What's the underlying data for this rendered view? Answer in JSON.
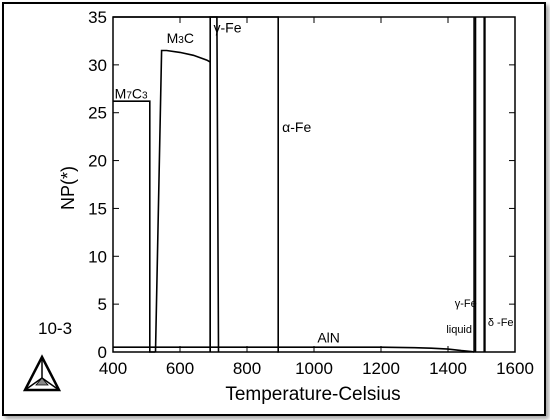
{
  "chart_data": {
    "type": "line",
    "title": "",
    "xlabel": "Temperature-Celsius",
    "ylabel": "NP(*)",
    "y_multiplier_label": "10-3",
    "xlim": [
      400,
      1600
    ],
    "ylim": [
      0,
      35
    ],
    "xticks": [
      400,
      600,
      800,
      1000,
      1200,
      1400,
      1600
    ],
    "yticks": [
      0,
      5,
      10,
      15,
      20,
      25,
      30,
      35
    ],
    "grid": false,
    "series": [
      {
        "name": "M7C3",
        "x": [
          400,
          510,
          510,
          518,
          526
        ],
        "y": [
          26.2,
          26.2,
          0,
          0,
          0
        ]
      },
      {
        "name": "M3C",
        "x": [
          527,
          545,
          560,
          600,
          640,
          680,
          690,
          690
        ],
        "y": [
          0,
          31.5,
          31.5,
          31.3,
          31,
          30.5,
          30.3,
          0
        ]
      },
      {
        "name": "γ-Fe",
        "x": [
          690,
          690,
          710,
          715
        ],
        "y": [
          0,
          35,
          35,
          0
        ]
      },
      {
        "name": "α-Fe",
        "x": [
          400,
          893,
          893,
          895
        ],
        "y": [
          35,
          35,
          0,
          0
        ]
      },
      {
        "name": "AlN",
        "x": [
          400,
          600,
          800,
          1000,
          1200,
          1300,
          1350,
          1400,
          1440,
          1470,
          1478
        ],
        "y": [
          0.5,
          0.5,
          0.5,
          0.5,
          0.5,
          0.45,
          0.4,
          0.3,
          0.15,
          0.05,
          0
        ]
      },
      {
        "name": "liquid",
        "x": [
          1478,
          1478
        ],
        "y": [
          0,
          35
        ]
      },
      {
        "name": "γ-Fe (high T)",
        "x": [
          1482,
          1482
        ],
        "y": [
          0,
          35
        ]
      },
      {
        "name": "δ-Fe",
        "x": [
          1508,
          1508
        ],
        "y": [
          0,
          35
        ]
      },
      {
        "name": "δ-Fe",
        "x": [
          1510,
          1510
        ],
        "y": [
          0,
          35
        ]
      }
    ],
    "annotations": [
      {
        "id": "m7c3",
        "parts": [
          "M",
          "7",
          "C",
          "3"
        ],
        "x": 405,
        "y": 26.5,
        "size": 14
      },
      {
        "id": "m3c",
        "parts": [
          "M",
          "3",
          "C"
        ],
        "x": 560,
        "y": 32.3,
        "size": 14
      },
      {
        "id": "gfe",
        "text": "γ-Fe",
        "x": 700,
        "y": 33.4,
        "size": 14
      },
      {
        "id": "afe",
        "text": "α-Fe",
        "x": 905,
        "y": 23.0,
        "size": 14
      },
      {
        "id": "aln",
        "text": "AlN",
        "x": 1010,
        "y": 1.0,
        "size": 14
      },
      {
        "id": "gfe-high",
        "text": "γ-Fe",
        "x": 1420,
        "y": 4.7,
        "size": 11
      },
      {
        "id": "liquid",
        "text": "liquid",
        "x": 1395,
        "y": 2.0,
        "size": 11
      },
      {
        "id": "dfe",
        "text": "δ -Fe",
        "x": 1519,
        "y": 2.7,
        "size": 11
      }
    ],
    "logo": "thermo-calc-triangle-icon"
  }
}
